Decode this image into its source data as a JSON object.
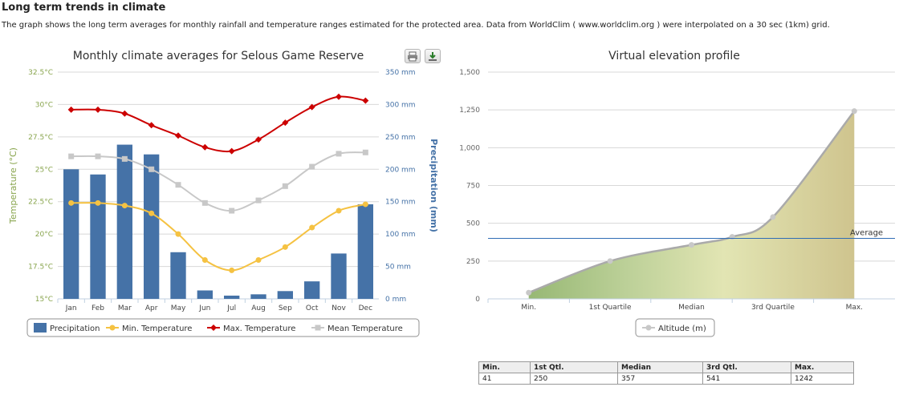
{
  "page": {
    "heading": "Long term trends in climate",
    "intro": "The graph shows the long term averages for monthly rainfall and temperature ranges estimated for the protected area. Data from WorldClim ( www.worldclim.org ) were interpolated on a 30 sec (1km) grid."
  },
  "colors": {
    "precipitation": "#4572a7",
    "min_temperature": "#f5c242",
    "max_temperature": "#cc0000",
    "mean_temperature": "#c8c8c8",
    "temp_axis": "#89a54e",
    "precip_axis": "#4572a7",
    "average_line": "#2f6db5"
  },
  "chart_data": [
    {
      "type": "bar",
      "title": "Monthly climate averages for Selous Game Reserve",
      "categories": [
        "Jan",
        "Feb",
        "Mar",
        "Apr",
        "May",
        "Jun",
        "Jul",
        "Aug",
        "Sep",
        "Oct",
        "Nov",
        "Dec"
      ],
      "y_left": {
        "label": "Temperature (°C)",
        "range": [
          15,
          32.5
        ],
        "ticks": [
          "15°C",
          "17.5°C",
          "20°C",
          "22.5°C",
          "25°C",
          "27.5°C",
          "30°C",
          "32.5°C"
        ]
      },
      "y_right": {
        "label": "Precipitation (mm)",
        "range": [
          0,
          350
        ],
        "ticks": [
          "0 mm",
          "50 mm",
          "100 mm",
          "150 mm",
          "200 mm",
          "250 mm",
          "300 mm",
          "350 mm"
        ]
      },
      "series": [
        {
          "name": "Precipitation",
          "kind": "column",
          "axis": "right",
          "values": [
            200,
            192,
            238,
            223,
            72,
            13,
            5,
            7,
            12,
            27,
            70,
            146
          ]
        },
        {
          "name": "Min. Temperature",
          "kind": "line",
          "axis": "left",
          "values": [
            22.4,
            22.4,
            22.2,
            21.6,
            20.0,
            18.0,
            17.2,
            18.0,
            19.0,
            20.5,
            21.8,
            22.3
          ]
        },
        {
          "name": "Max. Temperature",
          "kind": "line",
          "axis": "left",
          "values": [
            29.6,
            29.6,
            29.3,
            28.4,
            27.6,
            26.7,
            26.4,
            27.3,
            28.6,
            29.8,
            30.6,
            30.3
          ]
        },
        {
          "name": "Mean Temperature",
          "kind": "line",
          "axis": "left",
          "values": [
            26.0,
            26.0,
            25.8,
            25.0,
            23.8,
            22.4,
            21.8,
            22.6,
            23.7,
            25.2,
            26.2,
            26.3
          ]
        }
      ],
      "legend": [
        "Precipitation",
        "Min. Temperature",
        "Max. Temperature",
        "Mean Temperature"
      ],
      "legend_position": "bottom",
      "grid": true
    },
    {
      "type": "area",
      "title": "Virtual elevation profile",
      "categories": [
        "Min.",
        "1st Quartile",
        "Median",
        "3rd Quartile",
        "Max."
      ],
      "y": {
        "range": [
          0,
          1500
        ],
        "ticks": [
          "0",
          "250",
          "500",
          "750",
          "1,000",
          "1,250",
          "1,500"
        ]
      },
      "series": [
        {
          "name": "Altitude (m)",
          "points": [
            [
              0,
              41
            ],
            [
              1,
              250
            ],
            [
              2,
              357
            ],
            [
              2.5,
              410
            ],
            [
              3,
              541
            ],
            [
              4,
              1242
            ]
          ]
        }
      ],
      "annotation": {
        "label": "Average",
        "value": 400
      },
      "legend": [
        "Altitude (m)"
      ],
      "legend_position": "bottom",
      "grid": true
    }
  ],
  "stats_table": {
    "headers": [
      "Min.",
      "1st Qtl.",
      "Median",
      "3rd Qtl.",
      "Max."
    ],
    "values": [
      "41",
      "250",
      "357",
      "541",
      "1242"
    ]
  }
}
